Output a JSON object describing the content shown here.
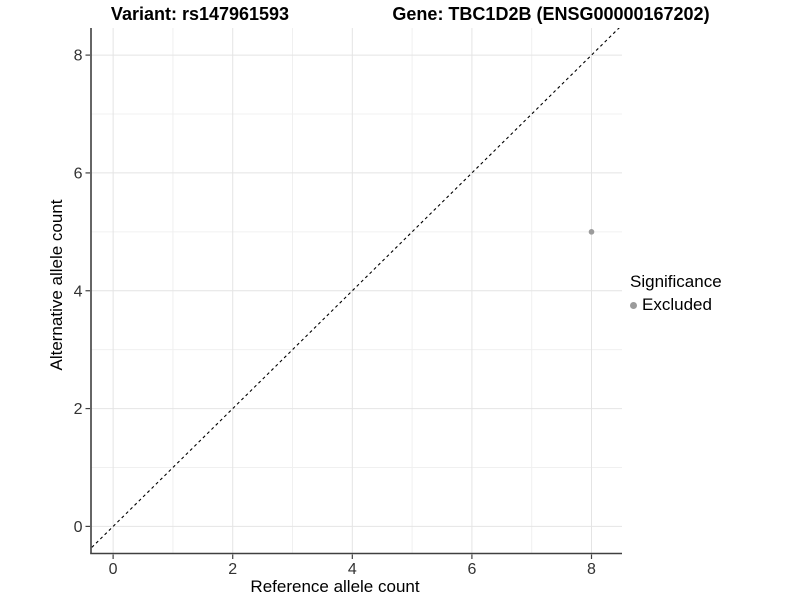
{
  "chart_data": {
    "type": "scatter",
    "title_left": "Variant: rs147961593",
    "title_right": "Gene: TBC1D2B (ENSG00000167202)",
    "xlabel": "Reference allele count",
    "ylabel": "Alternative allele count",
    "xlim": [
      -0.37,
      8.51
    ],
    "ylim": [
      -0.46,
      8.46
    ],
    "xticks": [
      0,
      2,
      4,
      6,
      8
    ],
    "yticks": [
      0,
      2,
      4,
      6,
      8
    ],
    "x_minor_gridlines": [
      1,
      3,
      5,
      7
    ],
    "y_minor_gridlines": [
      1,
      3,
      5,
      7
    ],
    "grid": true,
    "identity_line": {
      "equation": "y = x",
      "style": "dashed",
      "color": "#000000"
    },
    "points": [
      {
        "x": 8,
        "y": 5,
        "significance": "Excluded"
      }
    ],
    "legend": {
      "title": "Significance",
      "position": "right",
      "items": [
        {
          "label": "Excluded",
          "color": "#9b9b9b"
        }
      ]
    },
    "colors": {
      "point_excluded": "#9b9b9b",
      "gridline_major": "#e4e4e4",
      "gridline_minor": "#f0f0f0",
      "axis_line": "#404040",
      "tick_label": "#333333",
      "background": "#ffffff"
    }
  }
}
